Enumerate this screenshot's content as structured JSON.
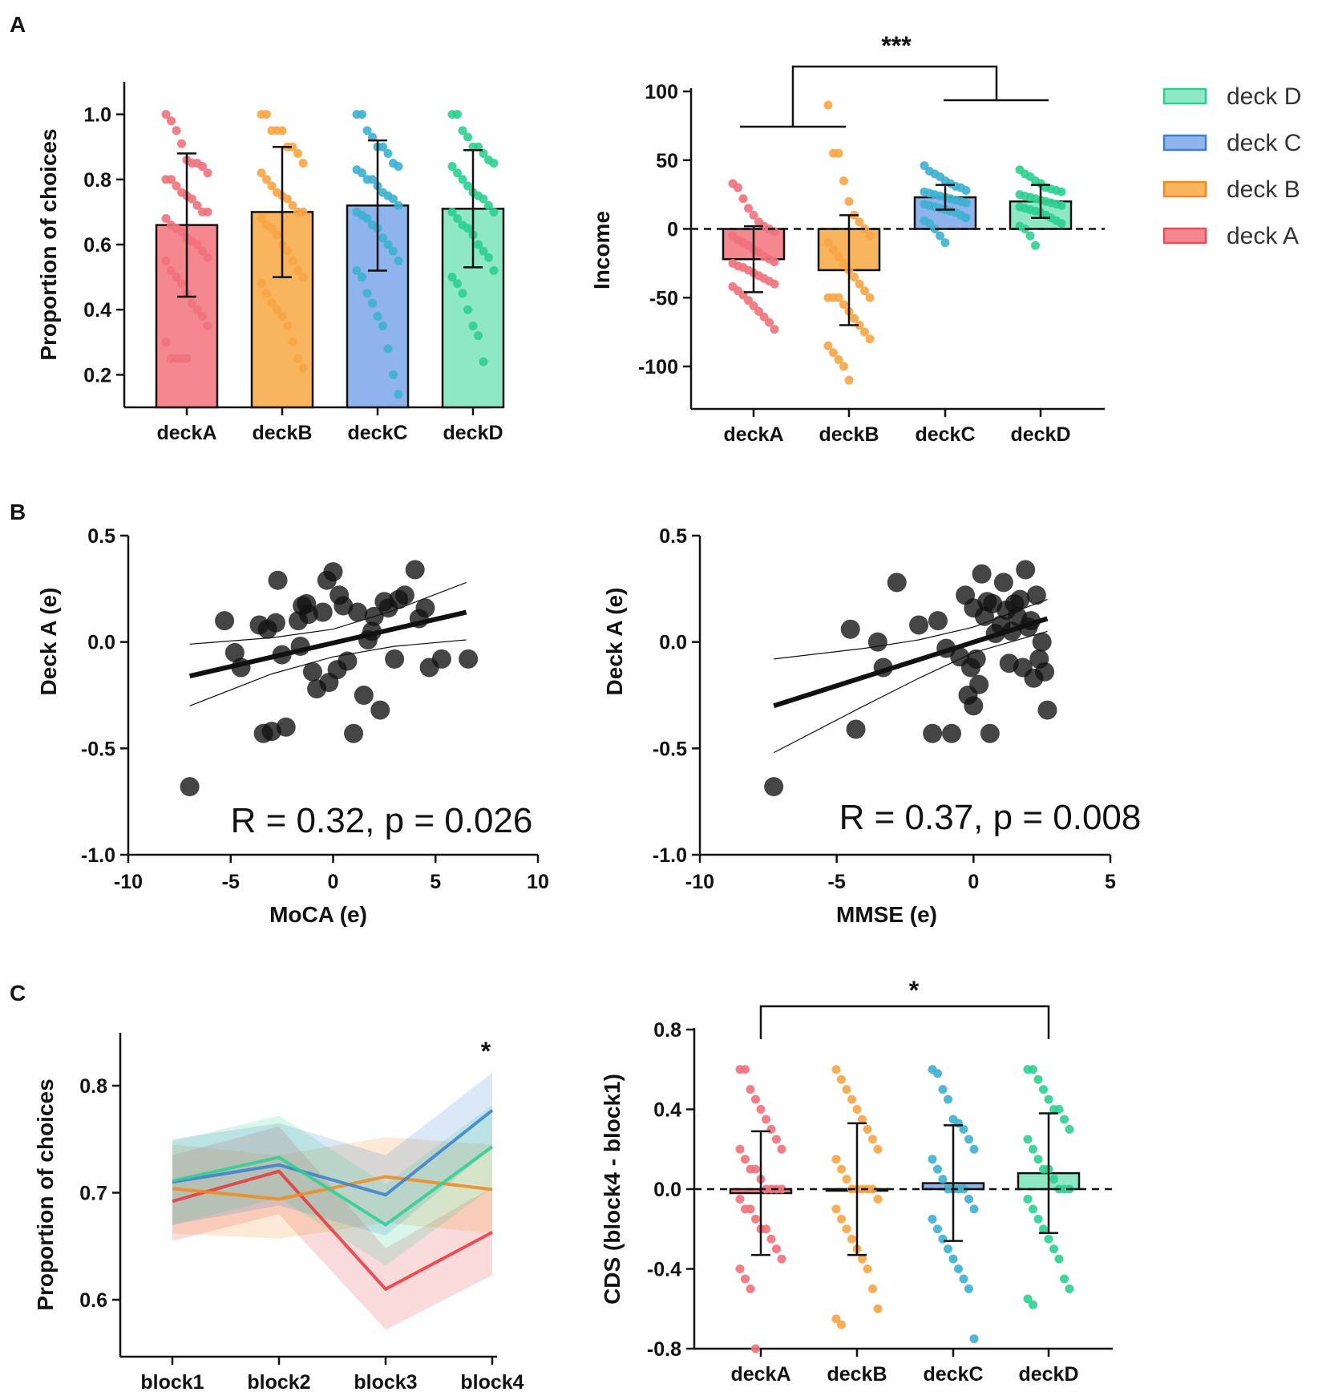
{
  "panel_labels": [
    "A",
    "B",
    "C"
  ],
  "chart_data": [
    {
      "id": "A1",
      "type": "bar",
      "title": "",
      "xlabel": "",
      "ylabel": "Proportion of choices",
      "categories": [
        "deckA",
        "deckB",
        "deckC",
        "deckD"
      ],
      "values": [
        0.66,
        0.7,
        0.72,
        0.71
      ],
      "error": [
        0.22,
        0.2,
        0.2,
        0.18
      ],
      "ylim": [
        0.1,
        1.1
      ],
      "yticks": [
        "0.2",
        "0.4",
        "0.6",
        "0.8",
        "1.0"
      ],
      "colors": [
        "#f4878f",
        "#f9b45e",
        "#8fb3ec",
        "#8ee8c4"
      ],
      "dot_colors": [
        "#f0717b",
        "#f7a544",
        "#3db0d0",
        "#2ccf90"
      ],
      "points": [
        [
          1.0,
          0.98,
          0.95,
          0.91,
          0.86,
          0.85,
          0.85,
          0.84,
          0.82,
          0.8,
          0.8,
          0.78,
          0.76,
          0.75,
          0.74,
          0.72,
          0.7,
          0.7,
          0.68,
          0.66,
          0.65,
          0.64,
          0.62,
          0.61,
          0.6,
          0.58,
          0.56,
          0.55,
          0.52,
          0.5,
          0.48,
          0.45,
          0.42,
          0.4,
          0.38,
          0.35,
          0.3,
          0.25,
          0.25,
          0.25,
          0.25
        ],
        [
          1.0,
          1.0,
          0.95,
          0.95,
          0.95,
          0.9,
          0.9,
          0.88,
          0.85,
          0.82,
          0.8,
          0.78,
          0.76,
          0.75,
          0.74,
          0.72,
          0.7,
          0.7,
          0.68,
          0.66,
          0.65,
          0.63,
          0.6,
          0.58,
          0.55,
          0.52,
          0.5,
          0.48,
          0.45,
          0.42,
          0.4,
          0.38,
          0.35,
          0.3,
          0.25,
          0.22
        ],
        [
          1.0,
          1.0,
          0.95,
          0.93,
          0.9,
          0.9,
          0.88,
          0.85,
          0.84,
          0.83,
          0.82,
          0.8,
          0.8,
          0.78,
          0.76,
          0.75,
          0.74,
          0.72,
          0.7,
          0.69,
          0.68,
          0.66,
          0.65,
          0.62,
          0.6,
          0.58,
          0.55,
          0.52,
          0.5,
          0.45,
          0.42,
          0.38,
          0.35,
          0.28,
          0.2,
          0.14
        ],
        [
          1.0,
          1.0,
          0.95,
          0.93,
          0.9,
          0.9,
          0.88,
          0.86,
          0.85,
          0.84,
          0.82,
          0.8,
          0.78,
          0.76,
          0.75,
          0.74,
          0.72,
          0.7,
          0.7,
          0.68,
          0.66,
          0.65,
          0.63,
          0.6,
          0.58,
          0.56,
          0.52,
          0.5,
          0.48,
          0.45,
          0.4,
          0.35,
          0.32,
          0.24
        ]
      ]
    },
    {
      "id": "A2",
      "type": "bar",
      "title": "",
      "xlabel": "",
      "ylabel": "Income",
      "categories": [
        "deckA",
        "deckB",
        "deckC",
        "deckD"
      ],
      "values": [
        -22,
        -30,
        23,
        20
      ],
      "error": [
        24,
        40,
        9,
        12
      ],
      "ylim": [
        -130,
        100
      ],
      "yticks": [
        "100",
        "50",
        "0",
        "-50",
        "-100"
      ],
      "colors": [
        "#f4878f",
        "#f9b45e",
        "#8fb3ec",
        "#8ee8c4"
      ],
      "dot_colors": [
        "#f0717b",
        "#f7a544",
        "#3db0d0",
        "#2ccf90"
      ],
      "reference_line": 0,
      "significance": "***",
      "legend": [
        "deck D",
        "deck C",
        "deck B",
        "deck A"
      ],
      "legend_colors": [
        "#8ee8c4",
        "#8fb3ec",
        "#f9b45e",
        "#f4878f"
      ],
      "legend_edge_colors": [
        "#2ccf90",
        "#3a7fd0",
        "#f08a1c",
        "#e64b57"
      ],
      "points": [
        [
          33,
          30,
          22,
          15,
          10,
          5,
          2,
          0,
          -2,
          -5,
          -8,
          -10,
          -12,
          -15,
          -17,
          -20,
          -22,
          -24,
          -25,
          -27,
          -28,
          -30,
          -32,
          -34,
          -36,
          -38,
          -40,
          -42,
          -45,
          -48,
          -52,
          -56,
          -60,
          -64,
          -68,
          -73
        ],
        [
          90,
          55,
          55,
          35,
          20,
          10,
          5,
          0,
          -5,
          -10,
          -15,
          -20,
          -25,
          -30,
          -35,
          -40,
          -45,
          -50,
          -50,
          -50,
          -50,
          -55,
          -60,
          -65,
          -70,
          -75,
          -80,
          -85,
          -90,
          -95,
          -100,
          -110
        ],
        [
          46,
          42,
          40,
          38,
          35,
          33,
          31,
          30,
          28,
          27,
          26,
          25,
          24,
          23,
          22,
          21,
          20,
          19,
          18,
          17,
          16,
          15,
          14,
          13,
          12,
          10,
          8,
          6,
          4,
          0,
          -5,
          -10
        ],
        [
          43,
          40,
          38,
          35,
          33,
          30,
          29,
          28,
          27,
          25,
          24,
          23,
          22,
          21,
          20,
          19,
          18,
          17,
          16,
          15,
          14,
          13,
          12,
          10,
          8,
          6,
          4,
          2,
          0,
          -5,
          -12
        ]
      ]
    },
    {
      "id": "B1",
      "type": "scatter",
      "title": "",
      "xlabel": "MoCA (e)",
      "ylabel": "Deck A (e)",
      "xlim": [
        -10,
        10
      ],
      "ylim": [
        -1.0,
        0.5
      ],
      "xticks": [
        "-10",
        "-5",
        "0",
        "5",
        "10"
      ],
      "yticks": [
        "0.5",
        "0.0",
        "-0.5",
        "-1.0"
      ],
      "annotation": "R = 0.32, p = 0.026",
      "fit": {
        "x": [
          -7,
          6.5
        ],
        "y": [
          -0.16,
          0.14
        ]
      },
      "ci_upper": {
        "x": [
          -7,
          -3,
          0,
          3,
          6.5
        ],
        "y": [
          -0.01,
          0.02,
          0.06,
          0.15,
          0.28
        ]
      },
      "ci_lower": {
        "x": [
          -7,
          -3,
          0,
          3,
          6.5
        ],
        "y": [
          -0.3,
          -0.15,
          -0.07,
          -0.02,
          0.01
        ]
      },
      "x": [
        -7,
        -5.3,
        -4.8,
        -4.5,
        -3.6,
        -3.4,
        -3.2,
        -3,
        -2.8,
        -2.7,
        -2.5,
        -2.3,
        -1.7,
        -1.6,
        -1.5,
        -1.3,
        -1.2,
        -1,
        -0.8,
        -0.5,
        -0.3,
        -0.2,
        0,
        0.2,
        0.3,
        0.5,
        0.7,
        1,
        1.2,
        1.5,
        1.7,
        1.9,
        2,
        2.3,
        2.5,
        2.7,
        3,
        3.2,
        3.5,
        4,
        4.2,
        4.5,
        4.7,
        5.3,
        6.6
      ],
      "y": [
        -0.68,
        0.1,
        -0.05,
        -0.12,
        0.08,
        -0.43,
        0.06,
        -0.42,
        0.09,
        0.29,
        -0.06,
        -0.4,
        0.1,
        -0.02,
        0.17,
        0.18,
        0.13,
        -0.14,
        -0.22,
        0.14,
        0.29,
        -0.19,
        0.33,
        -0.13,
        0.22,
        0.17,
        -0.09,
        -0.43,
        0.14,
        -0.25,
        0.01,
        0.05,
        0.12,
        -0.32,
        0.19,
        0.16,
        -0.08,
        0.2,
        0.22,
        0.34,
        0.11,
        0.16,
        -0.12,
        -0.08,
        -0.08
      ]
    },
    {
      "id": "B2",
      "type": "scatter",
      "title": "",
      "xlabel": "MMSE (e)",
      "ylabel": "Deck A (e)",
      "xlim": [
        -10,
        5
      ],
      "ylim": [
        -1.0,
        0.5
      ],
      "xticks": [
        "-10",
        "-5",
        "0",
        "5"
      ],
      "yticks": [
        "0.5",
        "0.0",
        "-0.5",
        "-1.0"
      ],
      "annotation": "R = 0.37, p = 0.008",
      "fit": {
        "x": [
          -7.3,
          2.7
        ],
        "y": [
          -0.3,
          0.11
        ]
      },
      "ci_upper": {
        "x": [
          -7.3,
          -4,
          -2,
          0,
          2.7
        ],
        "y": [
          -0.08,
          -0.03,
          0.01,
          0.07,
          0.2
        ]
      },
      "ci_lower": {
        "x": [
          -7.3,
          -4,
          -2,
          0,
          2.7
        ],
        "y": [
          -0.52,
          -0.3,
          -0.17,
          -0.05,
          0.05
        ]
      },
      "x": [
        -7.3,
        -4.5,
        -4.3,
        -3.5,
        -3.3,
        -2.8,
        -2,
        -1.5,
        -1.3,
        -1,
        -0.8,
        -0.5,
        -0.3,
        -0.2,
        -0.1,
        0,
        0.1,
        0.2,
        0.3,
        0.4,
        0.6,
        0.7,
        0.8,
        1,
        1.1,
        1.2,
        1.3,
        1.4,
        1.5,
        1.6,
        1.7,
        1.8,
        1.9,
        2,
        2.1,
        2.2,
        2.3,
        2.4,
        2.5,
        2.6,
        2.7,
        0.0,
        0.5
      ],
      "y": [
        -0.68,
        0.06,
        -0.41,
        0.0,
        -0.12,
        0.28,
        0.08,
        -0.43,
        0.1,
        -0.03,
        -0.43,
        -0.07,
        0.22,
        -0.25,
        -0.12,
        0.16,
        -0.08,
        -0.2,
        0.32,
        0.12,
        -0.43,
        0.18,
        0.04,
        0.08,
        0.28,
        0.15,
        -0.1,
        0.05,
        0.18,
        0.12,
        0.2,
        -0.12,
        0.34,
        0.07,
        0.1,
        -0.17,
        0.22,
        -0.08,
        0.0,
        -0.14,
        -0.32,
        -0.3,
        0.19
      ]
    },
    {
      "id": "C1",
      "type": "line",
      "title": "",
      "xlabel": "",
      "ylabel": "Proportion of choices",
      "categories": [
        "block1",
        "block2",
        "block3",
        "block4"
      ],
      "ylim": [
        0.55,
        0.85
      ],
      "yticks": [
        "0.6",
        "0.7",
        "0.8"
      ],
      "significance": "*",
      "series": [
        {
          "name": "deck A",
          "color": "#e6363e",
          "values": [
            0.692,
            0.72,
            0.61,
            0.663
          ],
          "lower": [
            0.655,
            0.68,
            0.572,
            0.623
          ],
          "upper": [
            0.735,
            0.762,
            0.648,
            0.705
          ]
        },
        {
          "name": "deck B",
          "color": "#f08a1c",
          "values": [
            0.704,
            0.694,
            0.715,
            0.703
          ],
          "lower": [
            0.662,
            0.657,
            0.672,
            0.662
          ],
          "upper": [
            0.745,
            0.735,
            0.752,
            0.745
          ]
        },
        {
          "name": "deck C",
          "color": "#3a7fd0",
          "values": [
            0.71,
            0.726,
            0.698,
            0.777
          ],
          "lower": [
            0.67,
            0.688,
            0.66,
            0.742
          ],
          "upper": [
            0.75,
            0.765,
            0.735,
            0.812
          ]
        },
        {
          "name": "deck D",
          "color": "#2ccf90",
          "values": [
            0.711,
            0.733,
            0.67,
            0.743
          ],
          "lower": [
            0.67,
            0.695,
            0.632,
            0.705
          ],
          "upper": [
            0.748,
            0.772,
            0.708,
            0.782
          ]
        }
      ]
    },
    {
      "id": "C2",
      "type": "bar",
      "title": "",
      "xlabel": "",
      "ylabel": "CDS (block4 - block1)",
      "categories": [
        "deckA",
        "deckB",
        "deckC",
        "deckD"
      ],
      "values": [
        -0.02,
        0.0,
        0.03,
        0.08
      ],
      "error": [
        0.31,
        0.33,
        0.29,
        0.3
      ],
      "ylim": [
        -0.8,
        0.8
      ],
      "yticks": [
        "0.8",
        "0.4",
        "0.0",
        "-0.4",
        "-0.8"
      ],
      "colors": [
        "#f4878f",
        "#f9b45e",
        "#8fb3ec",
        "#8ee8c4"
      ],
      "dot_colors": [
        "#f0717b",
        "#f7a544",
        "#3db0d0",
        "#2ccf90"
      ],
      "reference_line": 0,
      "significance": "*",
      "points": [
        [
          0.6,
          0.6,
          0.5,
          0.45,
          0.4,
          0.35,
          0.3,
          0.25,
          0.2,
          0.2,
          0.15,
          0.1,
          0.1,
          0.05,
          0.0,
          0.0,
          0.0,
          0.0,
          -0.05,
          -0.1,
          -0.1,
          -0.15,
          -0.2,
          -0.2,
          -0.25,
          -0.3,
          -0.35,
          -0.4,
          -0.45,
          -0.5,
          -0.8
        ],
        [
          0.6,
          0.55,
          0.5,
          0.45,
          0.4,
          0.35,
          0.3,
          0.25,
          0.2,
          0.15,
          0.1,
          0.05,
          0.0,
          0.0,
          0.0,
          0.0,
          0.0,
          -0.05,
          -0.1,
          -0.15,
          -0.2,
          -0.25,
          -0.3,
          -0.35,
          -0.4,
          -0.5,
          -0.6,
          -0.65,
          -0.68
        ],
        [
          0.6,
          0.58,
          0.5,
          0.45,
          0.35,
          0.33,
          0.3,
          0.25,
          0.2,
          0.15,
          0.1,
          0.05,
          0.0,
          0.0,
          0.0,
          0.0,
          -0.05,
          -0.1,
          -0.15,
          -0.2,
          -0.25,
          -0.3,
          -0.35,
          -0.4,
          -0.45,
          -0.5,
          -0.75
        ],
        [
          0.6,
          0.6,
          0.55,
          0.5,
          0.45,
          0.4,
          0.4,
          0.35,
          0.3,
          0.25,
          0.2,
          0.15,
          0.1,
          0.1,
          0.05,
          0.0,
          0.0,
          0.0,
          -0.05,
          -0.1,
          -0.15,
          -0.2,
          -0.25,
          -0.3,
          -0.35,
          -0.45,
          -0.5,
          -0.55,
          -0.58
        ]
      ]
    }
  ]
}
